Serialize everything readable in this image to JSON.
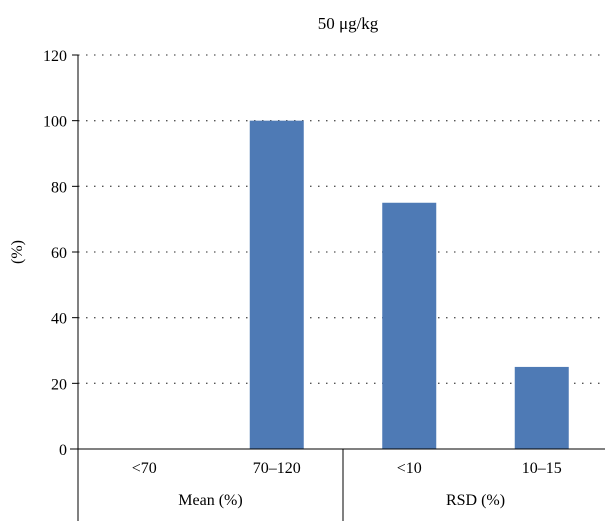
{
  "chart_data": {
    "type": "bar",
    "title": "50 μg/kg",
    "ylabel": "(%)",
    "xlabel": "",
    "ylim": [
      0,
      120
    ],
    "yticks": [
      0,
      20,
      40,
      60,
      80,
      100,
      120
    ],
    "grid": true,
    "categories": [
      "<70",
      "70–120",
      "<10",
      "10–15"
    ],
    "groups": [
      {
        "label": "Mean (%)",
        "categories": [
          "<70",
          "70–120"
        ]
      },
      {
        "label": "RSD (%)",
        "categories": [
          "<10",
          "10–15"
        ]
      }
    ],
    "values": [
      0,
      100,
      75,
      25
    ],
    "bar_color": "#4e7ab5"
  }
}
